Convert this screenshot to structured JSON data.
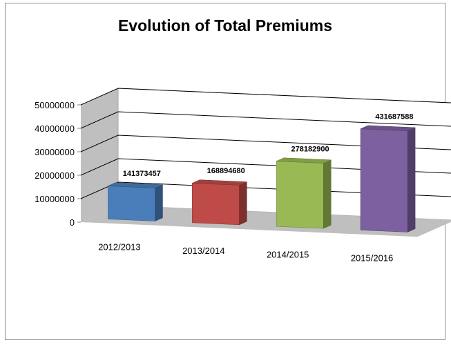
{
  "chart_data": {
    "type": "bar",
    "title": "Evolution of Total Premiums",
    "categories": [
      "2012/2013",
      "2013/2014",
      "2014/2015",
      "2015/2016"
    ],
    "values": [
      141373457,
      168894680,
      278182900,
      431687588
    ],
    "data_labels": [
      "141373457",
      "168894680",
      "278182900",
      "431687588"
    ],
    "y_ticks": [
      {
        "value": 0,
        "label": "0"
      },
      {
        "value": 10000000,
        "label": "10000000"
      },
      {
        "value": 20000000,
        "label": "20000000"
      },
      {
        "value": 30000000,
        "label": "30000000"
      },
      {
        "value": 40000000,
        "label": "40000000"
      },
      {
        "value": 50000000,
        "label": "50000000"
      }
    ],
    "ylim": [
      0,
      50000000
    ],
    "grid": true,
    "legend": "none",
    "style": "3d-column",
    "colors": {
      "bars": [
        "#4a7ebb",
        "#be4b48",
        "#98b954",
        "#7d60a0"
      ],
      "wall": "#bfbfbf",
      "floor": "#bfbfbf",
      "gridline": "#000000"
    }
  }
}
